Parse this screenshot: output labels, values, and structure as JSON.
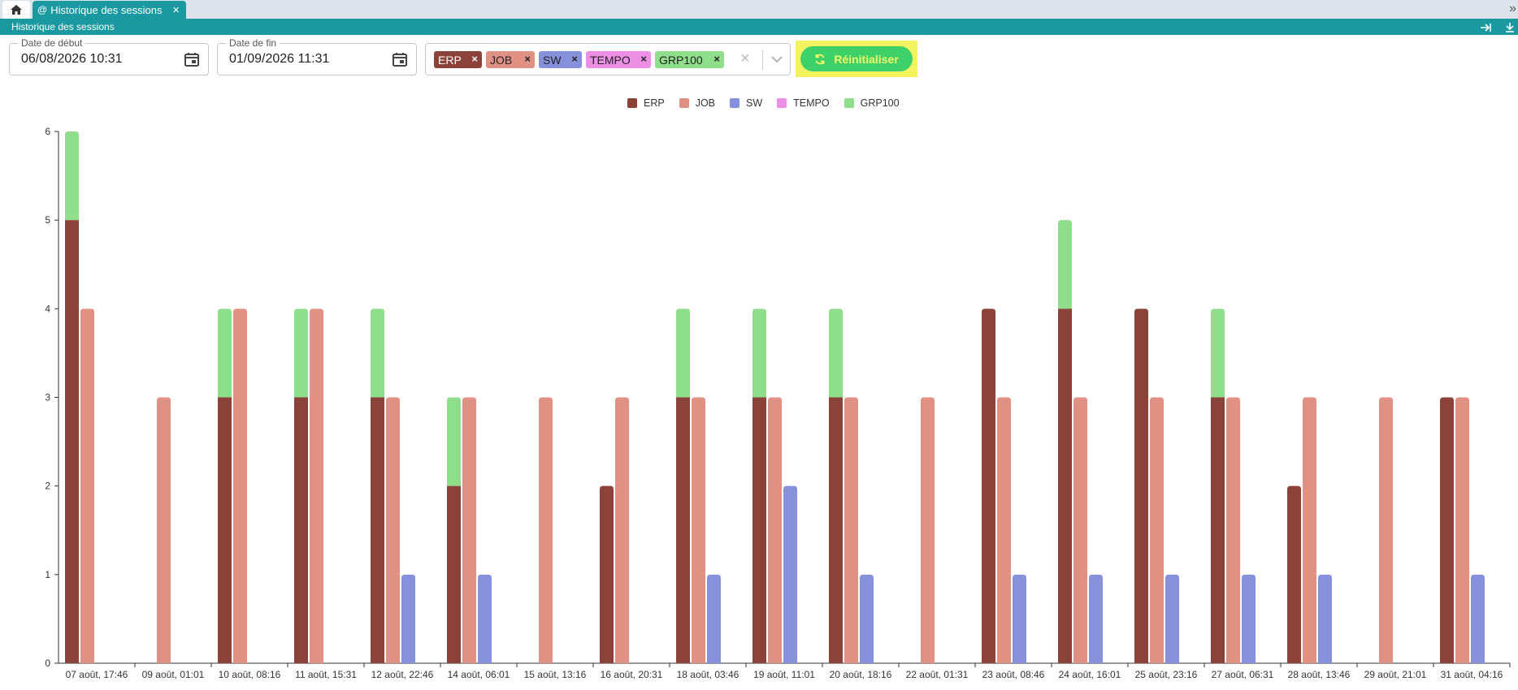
{
  "tabbar": {
    "tab_title": "Historique des sessions",
    "close_glyph": "×",
    "right_glyph": "»"
  },
  "modulebar": {
    "title": "Historique des sessions"
  },
  "filters": {
    "start": {
      "label": "Date de début",
      "value": "06/08/2026 10:31"
    },
    "end": {
      "label": "Date de fin",
      "value": "01/09/2026 11:31"
    },
    "selected": [
      {
        "label": "ERP",
        "color": "#8b4239",
        "text_color": "#ffffff"
      },
      {
        "label": "JOB",
        "color": "#e09183",
        "text_color": "#222222"
      },
      {
        "label": "SW",
        "color": "#8690db",
        "text_color": "#222222"
      },
      {
        "label": "TEMPO",
        "color": "#ee8fe6",
        "text_color": "#222222"
      },
      {
        "label": "GRP100",
        "color": "#8fde8c",
        "text_color": "#222222"
      }
    ],
    "remove_glyph": "×",
    "clear_glyph": "×"
  },
  "reset_button": {
    "label": "Réinitialiser",
    "icon": "refresh-icon"
  },
  "chart_data": {
    "type": "bar",
    "stacking": "ERP and GRP100 stacked; JOB and SW separate bars",
    "legend_position": "top-center",
    "ylim": [
      0,
      6
    ],
    "yticks": [
      0,
      1,
      2,
      3,
      4,
      5,
      6
    ],
    "categories": [
      "07 août, 17:46",
      "09 août, 01:01",
      "10 août, 08:16",
      "11 août, 15:31",
      "12 août, 22:46",
      "14 août, 06:01",
      "15 août, 13:16",
      "16 août, 20:31",
      "18 août, 03:46",
      "19 août, 11:01",
      "20 août, 18:16",
      "22 août, 01:31",
      "23 août, 08:46",
      "24 août, 16:01",
      "25 août, 23:16",
      "27 août, 06:31",
      "28 août, 13:46",
      "29 août, 21:01",
      "31 août, 04:16"
    ],
    "series": [
      {
        "name": "ERP",
        "color": "#8b4239",
        "values": [
          5,
          0,
          3,
          3,
          3,
          2,
          0,
          2,
          3,
          3,
          3,
          0,
          4,
          4,
          4,
          3,
          2,
          0,
          3
        ]
      },
      {
        "name": "JOB",
        "color": "#e09183",
        "values": [
          4,
          3,
          4,
          4,
          3,
          3,
          3,
          3,
          3,
          3,
          3,
          3,
          3,
          3,
          3,
          3,
          3,
          3,
          3
        ]
      },
      {
        "name": "SW",
        "color": "#8690db",
        "values": [
          0,
          0,
          0,
          0,
          1,
          1,
          0,
          0,
          1,
          2,
          1,
          0,
          1,
          1,
          1,
          1,
          1,
          0,
          1
        ]
      },
      {
        "name": "TEMPO",
        "color": "#ee8fe6",
        "values": [
          0,
          0,
          0,
          0,
          0,
          0,
          0,
          0,
          0,
          0,
          0,
          0,
          0,
          0,
          0,
          0,
          0,
          0,
          0
        ]
      },
      {
        "name": "GRP100",
        "color": "#8fde8c",
        "values": [
          1,
          0,
          1,
          1,
          1,
          1,
          0,
          0,
          1,
          1,
          1,
          0,
          0,
          1,
          0,
          1,
          0,
          0,
          0
        ]
      }
    ]
  }
}
